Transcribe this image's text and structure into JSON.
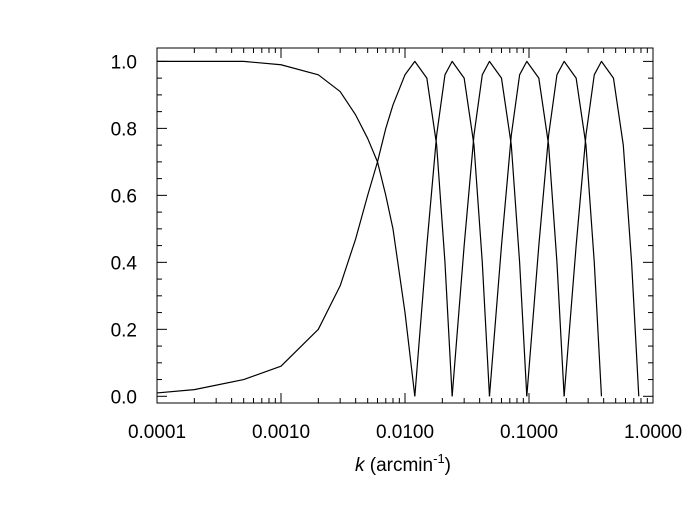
{
  "chart_data": {
    "type": "line",
    "x_scale": "log",
    "xlim": [
      0.0001,
      1.0
    ],
    "ylim": [
      -0.02,
      1.04
    ],
    "x_ticks": [
      {
        "value": 0.0001,
        "label": "0.0001"
      },
      {
        "value": 0.001,
        "label": "0.0010"
      },
      {
        "value": 0.01,
        "label": "0.0100"
      },
      {
        "value": 0.1,
        "label": "0.1000"
      },
      {
        "value": 1.0,
        "label": "1.0000"
      }
    ],
    "y_ticks": [
      {
        "value": 0.0,
        "label": "0.0"
      },
      {
        "value": 0.2,
        "label": "0.2"
      },
      {
        "value": 0.4,
        "label": "0.4"
      },
      {
        "value": 0.6,
        "label": "0.6"
      },
      {
        "value": 0.8,
        "label": "0.8"
      },
      {
        "value": 1.0,
        "label": "1.0"
      }
    ],
    "xlabel": {
      "var": "k",
      "text": " (arcmin",
      "sup": "-1",
      "close": ")"
    },
    "ylabel": "",
    "title": "",
    "grid": false,
    "legend": "none",
    "line_color": "#000000",
    "series": [
      {
        "x": [
          0.0001,
          0.0002,
          0.0005,
          0.001,
          0.002,
          0.003,
          0.004,
          0.005,
          0.006,
          0.007,
          0.008,
          0.01,
          0.012
        ],
        "y": [
          1.0,
          1.0,
          1.0,
          0.99,
          0.96,
          0.91,
          0.84,
          0.77,
          0.7,
          0.6,
          0.5,
          0.25,
          0.0
        ]
      },
      {
        "x": [
          0.0001,
          0.0002,
          0.0005,
          0.001,
          0.002,
          0.003,
          0.004,
          0.005,
          0.006,
          0.007,
          0.008,
          0.01,
          0.012,
          0.015,
          0.018,
          0.021,
          0.024
        ],
        "y": [
          0.01,
          0.02,
          0.05,
          0.09,
          0.2,
          0.33,
          0.47,
          0.6,
          0.7,
          0.8,
          0.87,
          0.96,
          1.0,
          0.95,
          0.75,
          0.4,
          0.0
        ]
      },
      {
        "x": [
          0.012,
          0.015,
          0.018,
          0.021,
          0.024,
          0.03,
          0.036,
          0.042,
          0.048
        ],
        "y": [
          0.0,
          0.45,
          0.78,
          0.96,
          1.0,
          0.95,
          0.75,
          0.4,
          0.0
        ]
      },
      {
        "x": [
          0.024,
          0.03,
          0.036,
          0.042,
          0.048,
          0.06,
          0.072,
          0.084,
          0.096
        ],
        "y": [
          0.0,
          0.45,
          0.78,
          0.96,
          1.0,
          0.95,
          0.75,
          0.4,
          0.0
        ]
      },
      {
        "x": [
          0.048,
          0.06,
          0.072,
          0.084,
          0.096,
          0.12,
          0.144,
          0.168,
          0.192
        ],
        "y": [
          0.0,
          0.45,
          0.78,
          0.96,
          1.0,
          0.95,
          0.75,
          0.4,
          0.0
        ]
      },
      {
        "x": [
          0.096,
          0.12,
          0.144,
          0.168,
          0.192,
          0.24,
          0.288,
          0.336,
          0.384
        ],
        "y": [
          0.0,
          0.45,
          0.78,
          0.96,
          1.0,
          0.95,
          0.75,
          0.4,
          0.0
        ]
      },
      {
        "x": [
          0.192,
          0.24,
          0.288,
          0.336,
          0.384,
          0.48,
          0.576,
          0.672,
          0.768
        ],
        "y": [
          0.0,
          0.45,
          0.78,
          0.96,
          1.0,
          0.95,
          0.75,
          0.4,
          0.0
        ]
      }
    ]
  }
}
